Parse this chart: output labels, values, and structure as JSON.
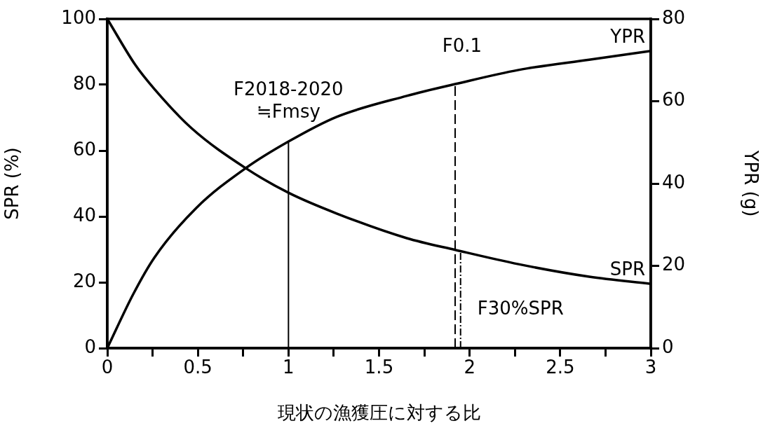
{
  "chart_data": {
    "type": "line",
    "xlabel": "現状の漁獲圧に対する比",
    "ylabel": "SPR (%)",
    "y2label": "YPR (g)",
    "xlim": [
      0,
      3
    ],
    "xticks": [
      0,
      {
        "value": 0.25,
        "label": null
      },
      0.5,
      {
        "value": 0.75,
        "label": null
      },
      1,
      {
        "value": 1.25,
        "label": null
      },
      1.5,
      {
        "value": 1.75,
        "label": null
      },
      2,
      {
        "value": 2.25,
        "label": null
      },
      2.5,
      {
        "value": 2.75,
        "label": null
      },
      3
    ],
    "ylim": [
      0,
      100
    ],
    "yticks": [
      0,
      20,
      40,
      60,
      80,
      100
    ],
    "y2lim": [
      0,
      80
    ],
    "y2ticks": [
      0,
      20,
      40,
      60,
      80
    ],
    "grid": false,
    "legend": false,
    "marker": "none",
    "line_style": "solid",
    "series": [
      {
        "name": "SPR",
        "color": "#000000",
        "x": [
          0,
          0.155,
          0.26,
          0.465,
          0.763,
          1.0,
          1.266,
          1.653,
          1.924,
          2.27,
          2.66,
          3
        ],
        "values": [
          100,
          86,
          78.7,
          66.8,
          54.7,
          47.2,
          40.9,
          33.4,
          29.8,
          25.5,
          21.7,
          19.5
        ]
      },
      {
        "name": "YPR",
        "color": "#000000",
        "axis": "y2",
        "x": [
          0,
          0.143,
          0.26,
          0.49,
          0.763,
          1.0,
          1.266,
          1.653,
          1.924,
          2.27,
          2.66,
          3
        ],
        "values": [
          0,
          13.1,
          22,
          34,
          43.7,
          50.2,
          56.2,
          61.3,
          64.2,
          67.6,
          70.1,
          72.2
        ]
      }
    ],
    "ref_lines": [
      {
        "axis": "x",
        "value": 1,
        "label": "F2018-2020\n≒Fmsy",
        "line_style": "solid",
        "color": "#000000"
      },
      {
        "axis": "x",
        "value": 1.92,
        "label": "F0.1",
        "line_style": "dashed",
        "color": "#000000"
      },
      {
        "axis": "x",
        "value": 1.95,
        "label": "F30%SPR",
        "line_style": "dotted",
        "color": "#000000"
      }
    ]
  }
}
